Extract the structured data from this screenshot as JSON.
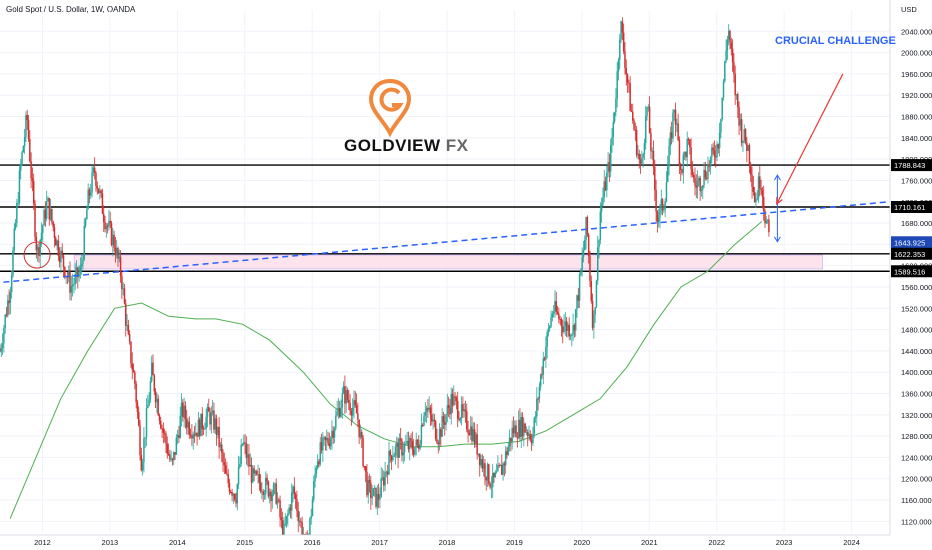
{
  "header": {
    "symbol_label": "Gold Spot / U.S. Dollar, 1W, OANDA"
  },
  "brand": {
    "name": "GOLDVIEW",
    "suffix": "FX",
    "icon": "goldview-pin-logo-icon"
  },
  "annotation": {
    "callout": "CRUCIAL CHALLENGE"
  },
  "colors": {
    "up": "#26a69a",
    "down": "#d32f2f",
    "ma": "#4caf50",
    "trendline": "#2962ff",
    "zone": "#fde3ec",
    "logo": "#f0883e"
  },
  "chart_data": {
    "type": "candlestick",
    "currency_label": "USD",
    "y_ticks": [
      "2040.000",
      "2000.000",
      "1960.000",
      "1920.000",
      "1880.000",
      "1840.000",
      "1800.000",
      "1760.000",
      "1720.000",
      "1680.000",
      "1640.000",
      "1600.000",
      "1560.000",
      "1520.000",
      "1480.000",
      "1440.000",
      "1400.000",
      "1360.000",
      "1320.000",
      "1280.000",
      "1240.000",
      "1200.000",
      "1160.000",
      "1120.000"
    ],
    "x_ticks": [
      "2012",
      "2013",
      "2014",
      "2015",
      "2016",
      "2017",
      "2018",
      "2019",
      "2020",
      "2021",
      "2022",
      "2023",
      "2024"
    ],
    "ylim": [
      1100,
      2080
    ],
    "xlim": [
      2011.4,
      2024.6
    ],
    "price_path": [
      [
        2011.4,
        1440
      ],
      [
        2011.55,
        1560
      ],
      [
        2011.7,
        1780
      ],
      [
        2011.8,
        1880
      ],
      [
        2011.95,
        1620
      ],
      [
        2012.1,
        1720
      ],
      [
        2012.25,
        1640
      ],
      [
        2012.45,
        1560
      ],
      [
        2012.6,
        1590
      ],
      [
        2012.7,
        1720
      ],
      [
        2012.8,
        1780
      ],
      [
        2012.95,
        1690
      ],
      [
        2013.1,
        1640
      ],
      [
        2013.2,
        1580
      ],
      [
        2013.3,
        1460
      ],
      [
        2013.4,
        1380
      ],
      [
        2013.5,
        1230
      ],
      [
        2013.65,
        1400
      ],
      [
        2013.8,
        1300
      ],
      [
        2013.95,
        1220
      ],
      [
        2014.1,
        1330
      ],
      [
        2014.2,
        1300
      ],
      [
        2014.3,
        1290
      ],
      [
        2014.5,
        1320
      ],
      [
        2014.6,
        1300
      ],
      [
        2014.75,
        1200
      ],
      [
        2014.9,
        1170
      ],
      [
        2015.0,
        1270
      ],
      [
        2015.15,
        1200
      ],
      [
        2015.3,
        1190
      ],
      [
        2015.5,
        1170
      ],
      [
        2015.6,
        1090
      ],
      [
        2015.75,
        1180
      ],
      [
        2015.95,
        1060
      ],
      [
        2016.1,
        1240
      ],
      [
        2016.3,
        1280
      ],
      [
        2016.5,
        1360
      ],
      [
        2016.7,
        1320
      ],
      [
        2016.85,
        1180
      ],
      [
        2017.0,
        1160
      ],
      [
        2017.2,
        1250
      ],
      [
        2017.4,
        1260
      ],
      [
        2017.6,
        1260
      ],
      [
        2017.7,
        1340
      ],
      [
        2017.9,
        1280
      ],
      [
        2018.1,
        1350
      ],
      [
        2018.25,
        1320
      ],
      [
        2018.4,
        1290
      ],
      [
        2018.55,
        1230
      ],
      [
        2018.7,
        1190
      ],
      [
        2018.85,
        1220
      ],
      [
        2019.0,
        1290
      ],
      [
        2019.15,
        1300
      ],
      [
        2019.3,
        1280
      ],
      [
        2019.45,
        1420
      ],
      [
        2019.6,
        1520
      ],
      [
        2019.75,
        1490
      ],
      [
        2019.9,
        1480
      ],
      [
        2020.0,
        1570
      ],
      [
        2020.1,
        1680
      ],
      [
        2020.2,
        1480
      ],
      [
        2020.3,
        1700
      ],
      [
        2020.45,
        1800
      ],
      [
        2020.55,
        1950
      ],
      [
        2020.6,
        2060
      ],
      [
        2020.75,
        1900
      ],
      [
        2020.9,
        1780
      ],
      [
        2021.0,
        1900
      ],
      [
        2021.15,
        1690
      ],
      [
        2021.25,
        1720
      ],
      [
        2021.4,
        1900
      ],
      [
        2021.5,
        1780
      ],
      [
        2021.6,
        1830
      ],
      [
        2021.7,
        1750
      ],
      [
        2021.8,
        1760
      ],
      [
        2021.95,
        1800
      ],
      [
        2022.05,
        1830
      ],
      [
        2022.1,
        1900
      ],
      [
        2022.2,
        2050
      ],
      [
        2022.3,
        1930
      ],
      [
        2022.4,
        1850
      ],
      [
        2022.5,
        1820
      ],
      [
        2022.6,
        1720
      ],
      [
        2022.68,
        1770
      ],
      [
        2022.75,
        1690
      ],
      [
        2022.82,
        1644
      ]
    ],
    "ma_path": [
      [
        2011.55,
        1125
      ],
      [
        2011.9,
        1230
      ],
      [
        2012.3,
        1350
      ],
      [
        2012.7,
        1440
      ],
      [
        2013.1,
        1520
      ],
      [
        2013.5,
        1530
      ],
      [
        2013.9,
        1505
      ],
      [
        2014.3,
        1500
      ],
      [
        2014.6,
        1500
      ],
      [
        2015.0,
        1490
      ],
      [
        2015.4,
        1460
      ],
      [
        2015.9,
        1400
      ],
      [
        2016.3,
        1340
      ],
      [
        2016.7,
        1300
      ],
      [
        2017.1,
        1275
      ],
      [
        2017.5,
        1260
      ],
      [
        2017.9,
        1260
      ],
      [
        2018.3,
        1265
      ],
      [
        2018.7,
        1265
      ],
      [
        2019.1,
        1270
      ],
      [
        2019.5,
        1290
      ],
      [
        2019.9,
        1320
      ],
      [
        2020.3,
        1350
      ],
      [
        2020.7,
        1410
      ],
      [
        2021.1,
        1490
      ],
      [
        2021.5,
        1560
      ],
      [
        2021.9,
        1590
      ],
      [
        2022.3,
        1640
      ],
      [
        2022.7,
        1683
      ]
    ],
    "trendline": {
      "from": [
        2011.45,
        1569
      ],
      "to": [
        2024.6,
        1720
      ]
    },
    "support_zone": {
      "x_from": 2012.5,
      "x_to": 2023.6,
      "y_from": 1594,
      "y_to": 1620
    },
    "horizontal_levels": [
      1788.843,
      1710.161,
      1622.353,
      1589.516
    ],
    "price_tags": [
      {
        "label": "1788.843",
        "value": 1788.843,
        "color": "#000000"
      },
      {
        "label": "1710.161",
        "value": 1710.161,
        "color": "#000000"
      },
      {
        "label": "1643.925",
        "value": 1643.925,
        "color": "#1e49b5"
      },
      {
        "label": "1622.353",
        "value": 1622.353,
        "color": "#000000"
      },
      {
        "label": "1589.516",
        "value": 1589.516,
        "color": "#000000"
      }
    ],
    "highlight_circle": {
      "x": 2011.95,
      "y": 1620
    },
    "arrows": [
      {
        "kind": "double",
        "x": 2022.93,
        "y_from": 1770,
        "y_to": 1645
      },
      {
        "kind": "single",
        "from": [
          2023.9,
          1960
        ],
        "to": [
          2022.92,
          1716
        ]
      }
    ]
  }
}
